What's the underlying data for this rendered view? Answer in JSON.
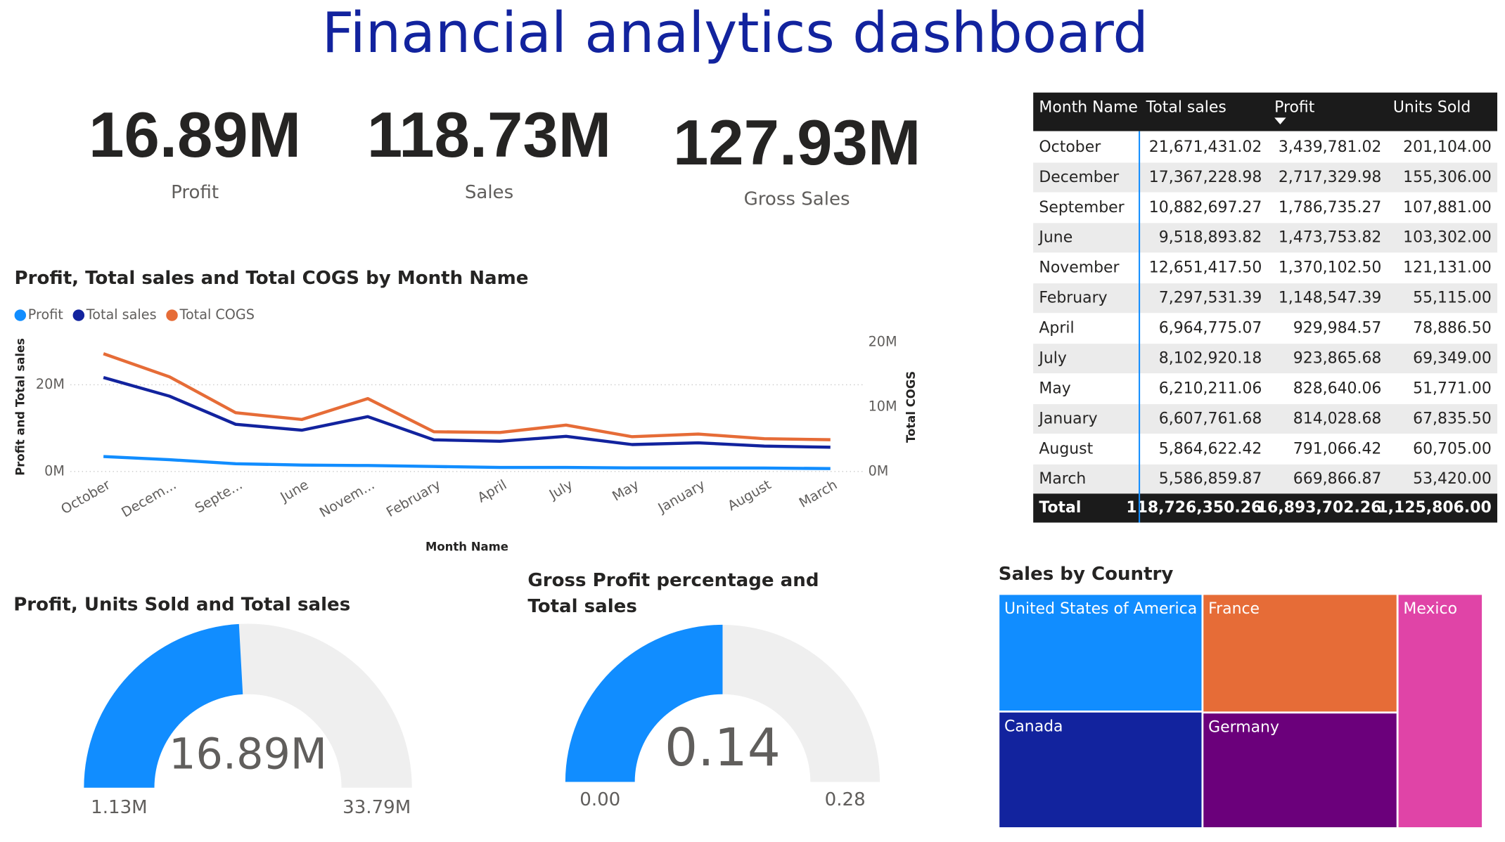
{
  "title": "Financial analytics dashboard",
  "kpis": [
    {
      "value": "16.89M",
      "label": "Profit"
    },
    {
      "value": "118.73M",
      "label": "Sales"
    },
    {
      "value": "127.93M",
      "label": "Gross Sales"
    }
  ],
  "table": {
    "columns": [
      "Month Name",
      "Total sales",
      "Profit",
      "Units Sold"
    ],
    "rows": [
      [
        "October",
        "21,671,431.02",
        "3,439,781.02",
        "201,104.00"
      ],
      [
        "December",
        "17,367,228.98",
        "2,717,329.98",
        "155,306.00"
      ],
      [
        "September",
        "10,882,697.27",
        "1,786,735.27",
        "107,881.00"
      ],
      [
        "June",
        "9,518,893.82",
        "1,473,753.82",
        "103,302.00"
      ],
      [
        "November",
        "12,651,417.50",
        "1,370,102.50",
        "121,131.00"
      ],
      [
        "February",
        "7,297,531.39",
        "1,148,547.39",
        "55,115.00"
      ],
      [
        "April",
        "6,964,775.07",
        "929,984.57",
        "78,886.50"
      ],
      [
        "July",
        "8,102,920.18",
        "923,865.68",
        "69,349.00"
      ],
      [
        "May",
        "6,210,211.06",
        "828,640.06",
        "51,771.00"
      ],
      [
        "January",
        "6,607,761.68",
        "814,028.68",
        "67,835.50"
      ],
      [
        "August",
        "5,864,622.42",
        "791,066.42",
        "60,705.00"
      ],
      [
        "March",
        "5,586,859.87",
        "669,866.87",
        "53,420.00"
      ]
    ],
    "total": [
      "Total",
      "118,726,350.26",
      "16,893,702.26",
      "1,125,806.00"
    ]
  },
  "chart_data": [
    {
      "type": "line",
      "title": "Profit, Total sales and Total COGS by Month Name",
      "categories": [
        "October",
        "Decem...",
        "Septe...",
        "June",
        "Novem...",
        "February",
        "April",
        "July",
        "May",
        "January",
        "August",
        "March"
      ],
      "x_label": "Month Name",
      "y_label": "Profit and Total sales",
      "y2_label": "Total COGS",
      "ylim": [
        0,
        29800000
      ],
      "yticks": [
        {
          "value": 0,
          "label": "0M"
        },
        {
          "value": 20000000,
          "label": "20M"
        }
      ],
      "y2lim": [
        0,
        20000000
      ],
      "y2ticks": [
        {
          "value": 0,
          "label": "0M"
        },
        {
          "value": 10000000,
          "label": "10M"
        },
        {
          "value": 20000000,
          "label": "20M"
        }
      ],
      "grid": true,
      "legend": "top-left",
      "series": [
        {
          "name": "Profit",
          "color": "#118dff",
          "values": [
            3439781.02,
            2717329.98,
            1786735.27,
            1473753.82,
            1370102.5,
            1148547.39,
            929984.57,
            923865.68,
            828640.06,
            814028.68,
            791066.42,
            669866.87
          ]
        },
        {
          "name": "Total sales",
          "color": "#12239e",
          "values": [
            21671431.02,
            17367228.98,
            10882697.27,
            9518893.82,
            12651417.5,
            7297531.39,
            6964775.07,
            8102920.18,
            6210211.06,
            6607761.68,
            5864622.42,
            5586859.87
          ]
        },
        {
          "name": "Total COGS",
          "color": "#e66c37",
          "axis": "y2",
          "values": [
            18231650,
            14649899,
            9095962,
            8045140,
            11281315,
            6148984,
            6034790.5,
            7179054.5,
            5381571,
            5793733,
            5073556,
            4916993
          ]
        }
      ]
    },
    {
      "type": "gauge",
      "title": "Profit, Units Sold and Total sales",
      "values": [
        16890000
      ],
      "value_labels": [
        "16.89M"
      ],
      "color": "#118dff",
      "ylim": [
        1130000,
        33790000
      ],
      "yticks": [
        {
          "value": 1130000,
          "label": "1.13M"
        },
        {
          "value": 33790000,
          "label": "33.79M"
        }
      ]
    },
    {
      "type": "gauge",
      "title": "Gross Profit percentage and Total sales",
      "values": [
        0.14
      ],
      "color": "#118dff",
      "ylim": [
        0,
        0.28
      ],
      "yticks": [
        {
          "value": 0,
          "label": "0.00"
        },
        0.28
      ]
    },
    {
      "type": "treemap",
      "title": "Sales by Country",
      "categories": [
        "United States of America",
        "Canada",
        "France",
        "Germany",
        "Mexico"
      ],
      "values": [
        25100000,
        24900000,
        24200000,
        23600000,
        20900000
      ],
      "colors": [
        "#118dff",
        "#12239e",
        "#e66c37",
        "#6b007b",
        "#e044a7"
      ]
    }
  ]
}
